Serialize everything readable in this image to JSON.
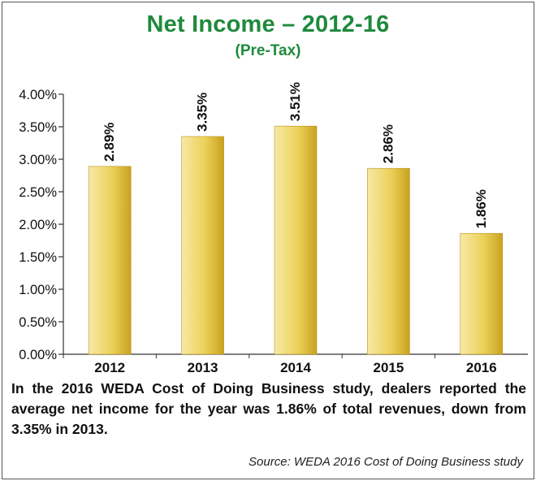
{
  "colors": {
    "title": "#1f8a3c",
    "bar_light": "#f7e9a6",
    "bar_mid": "#ecd15a",
    "bar_dark": "#c9a21f"
  },
  "chart_data": {
    "type": "bar",
    "title": "Net Income – 2012-16",
    "subtitle": "(Pre-Tax)",
    "xlabel": "",
    "ylabel": "",
    "categories": [
      "2012",
      "2013",
      "2014",
      "2015",
      "2016"
    ],
    "values": [
      2.89,
      3.35,
      3.51,
      2.86,
      1.86
    ],
    "value_labels": [
      "2.89%",
      "3.35%",
      "3.51%",
      "2.86%",
      "1.86%"
    ],
    "ylim": [
      0,
      4
    ],
    "yticks": [
      "0.00%",
      "0.50%",
      "1.00%",
      "1.50%",
      "2.00%",
      "2.50%",
      "3.00%",
      "3.50%",
      "4.00%"
    ],
    "grid": false,
    "legend": "none"
  },
  "caption": "In the 2016 WEDA Cost of Doing Business study, dealers reported the average net income for the year was 1.86% of total revenues, down from 3.35% in 2013.",
  "source": "Source: WEDA 2016 Cost of Doing Business study"
}
